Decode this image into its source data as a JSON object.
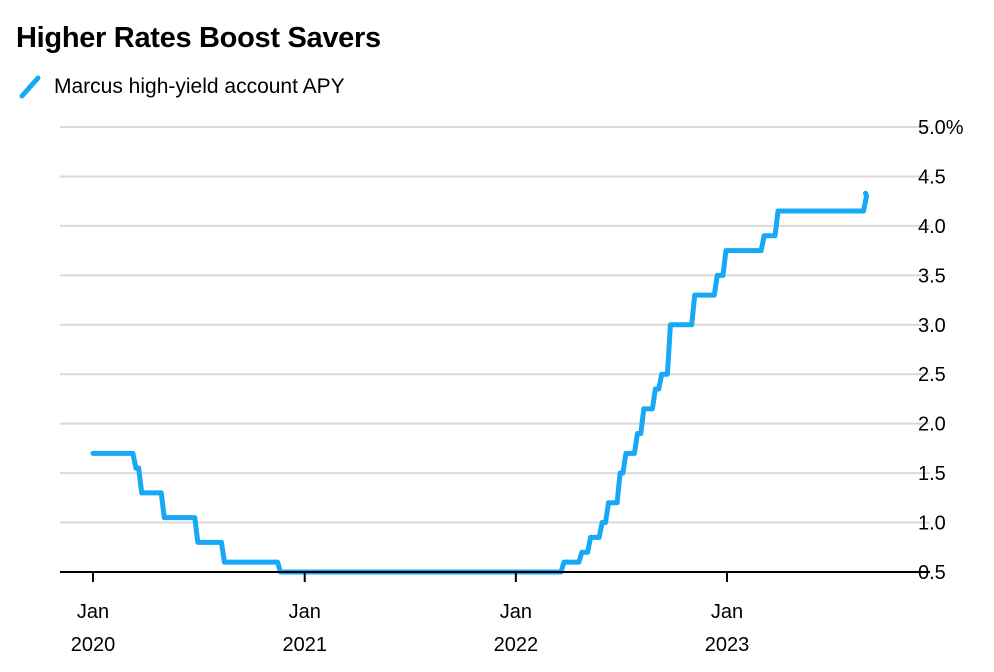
{
  "colors": {
    "series": "#17a9f5",
    "grid": "#d9d9d9",
    "axis": "#000000"
  },
  "chart_data": {
    "type": "line",
    "title": "Higher Rates Boost Savers",
    "xlabel": "",
    "ylabel": "",
    "ylim": [
      0.5,
      5.0
    ],
    "y_ticks": [
      {
        "value": 5.0,
        "label": "5.0%"
      },
      {
        "value": 4.5,
        "label": "4.5"
      },
      {
        "value": 4.0,
        "label": "4.0"
      },
      {
        "value": 3.5,
        "label": "3.5"
      },
      {
        "value": 3.0,
        "label": "3.0"
      },
      {
        "value": 2.5,
        "label": "2.5"
      },
      {
        "value": 2.0,
        "label": "2.0"
      },
      {
        "value": 1.5,
        "label": "1.5"
      },
      {
        "value": 1.0,
        "label": "1.0"
      },
      {
        "value": 0.5,
        "label": "0.5"
      }
    ],
    "x_range": [
      "2019-12-01",
      "2023-10-01"
    ],
    "x_ticks": [
      {
        "date": "2020-01-01",
        "month": "Jan",
        "year": "2020"
      },
      {
        "date": "2021-01-01",
        "month": "Jan",
        "year": "2021"
      },
      {
        "date": "2022-01-01",
        "month": "Jan",
        "year": "2022"
      },
      {
        "date": "2023-01-01",
        "month": "Jan",
        "year": "2023"
      }
    ],
    "legend_position": "top-left",
    "series": [
      {
        "name": "Marcus high-yield account APY",
        "step": true,
        "points": [
          [
            "2020-01-01",
            1.7
          ],
          [
            "2020-03-10",
            1.55
          ],
          [
            "2020-03-20",
            1.3
          ],
          [
            "2020-04-28",
            1.05
          ],
          [
            "2020-06-25",
            0.8
          ],
          [
            "2020-08-10",
            0.6
          ],
          [
            "2020-11-15",
            0.5
          ],
          [
            "2022-03-20",
            0.6
          ],
          [
            "2022-04-20",
            0.7
          ],
          [
            "2022-05-05",
            0.85
          ],
          [
            "2022-05-25",
            1.0
          ],
          [
            "2022-06-05",
            1.2
          ],
          [
            "2022-06-25",
            1.5
          ],
          [
            "2022-07-05",
            1.7
          ],
          [
            "2022-07-25",
            1.9
          ],
          [
            "2022-08-05",
            2.15
          ],
          [
            "2022-08-25",
            2.35
          ],
          [
            "2022-09-05",
            2.5
          ],
          [
            "2022-09-20",
            3.0
          ],
          [
            "2022-11-01",
            3.3
          ],
          [
            "2022-12-10",
            3.5
          ],
          [
            "2022-12-25",
            3.75
          ],
          [
            "2023-03-01",
            3.9
          ],
          [
            "2023-03-25",
            4.15
          ],
          [
            "2023-08-25",
            4.3
          ]
        ]
      }
    ]
  }
}
